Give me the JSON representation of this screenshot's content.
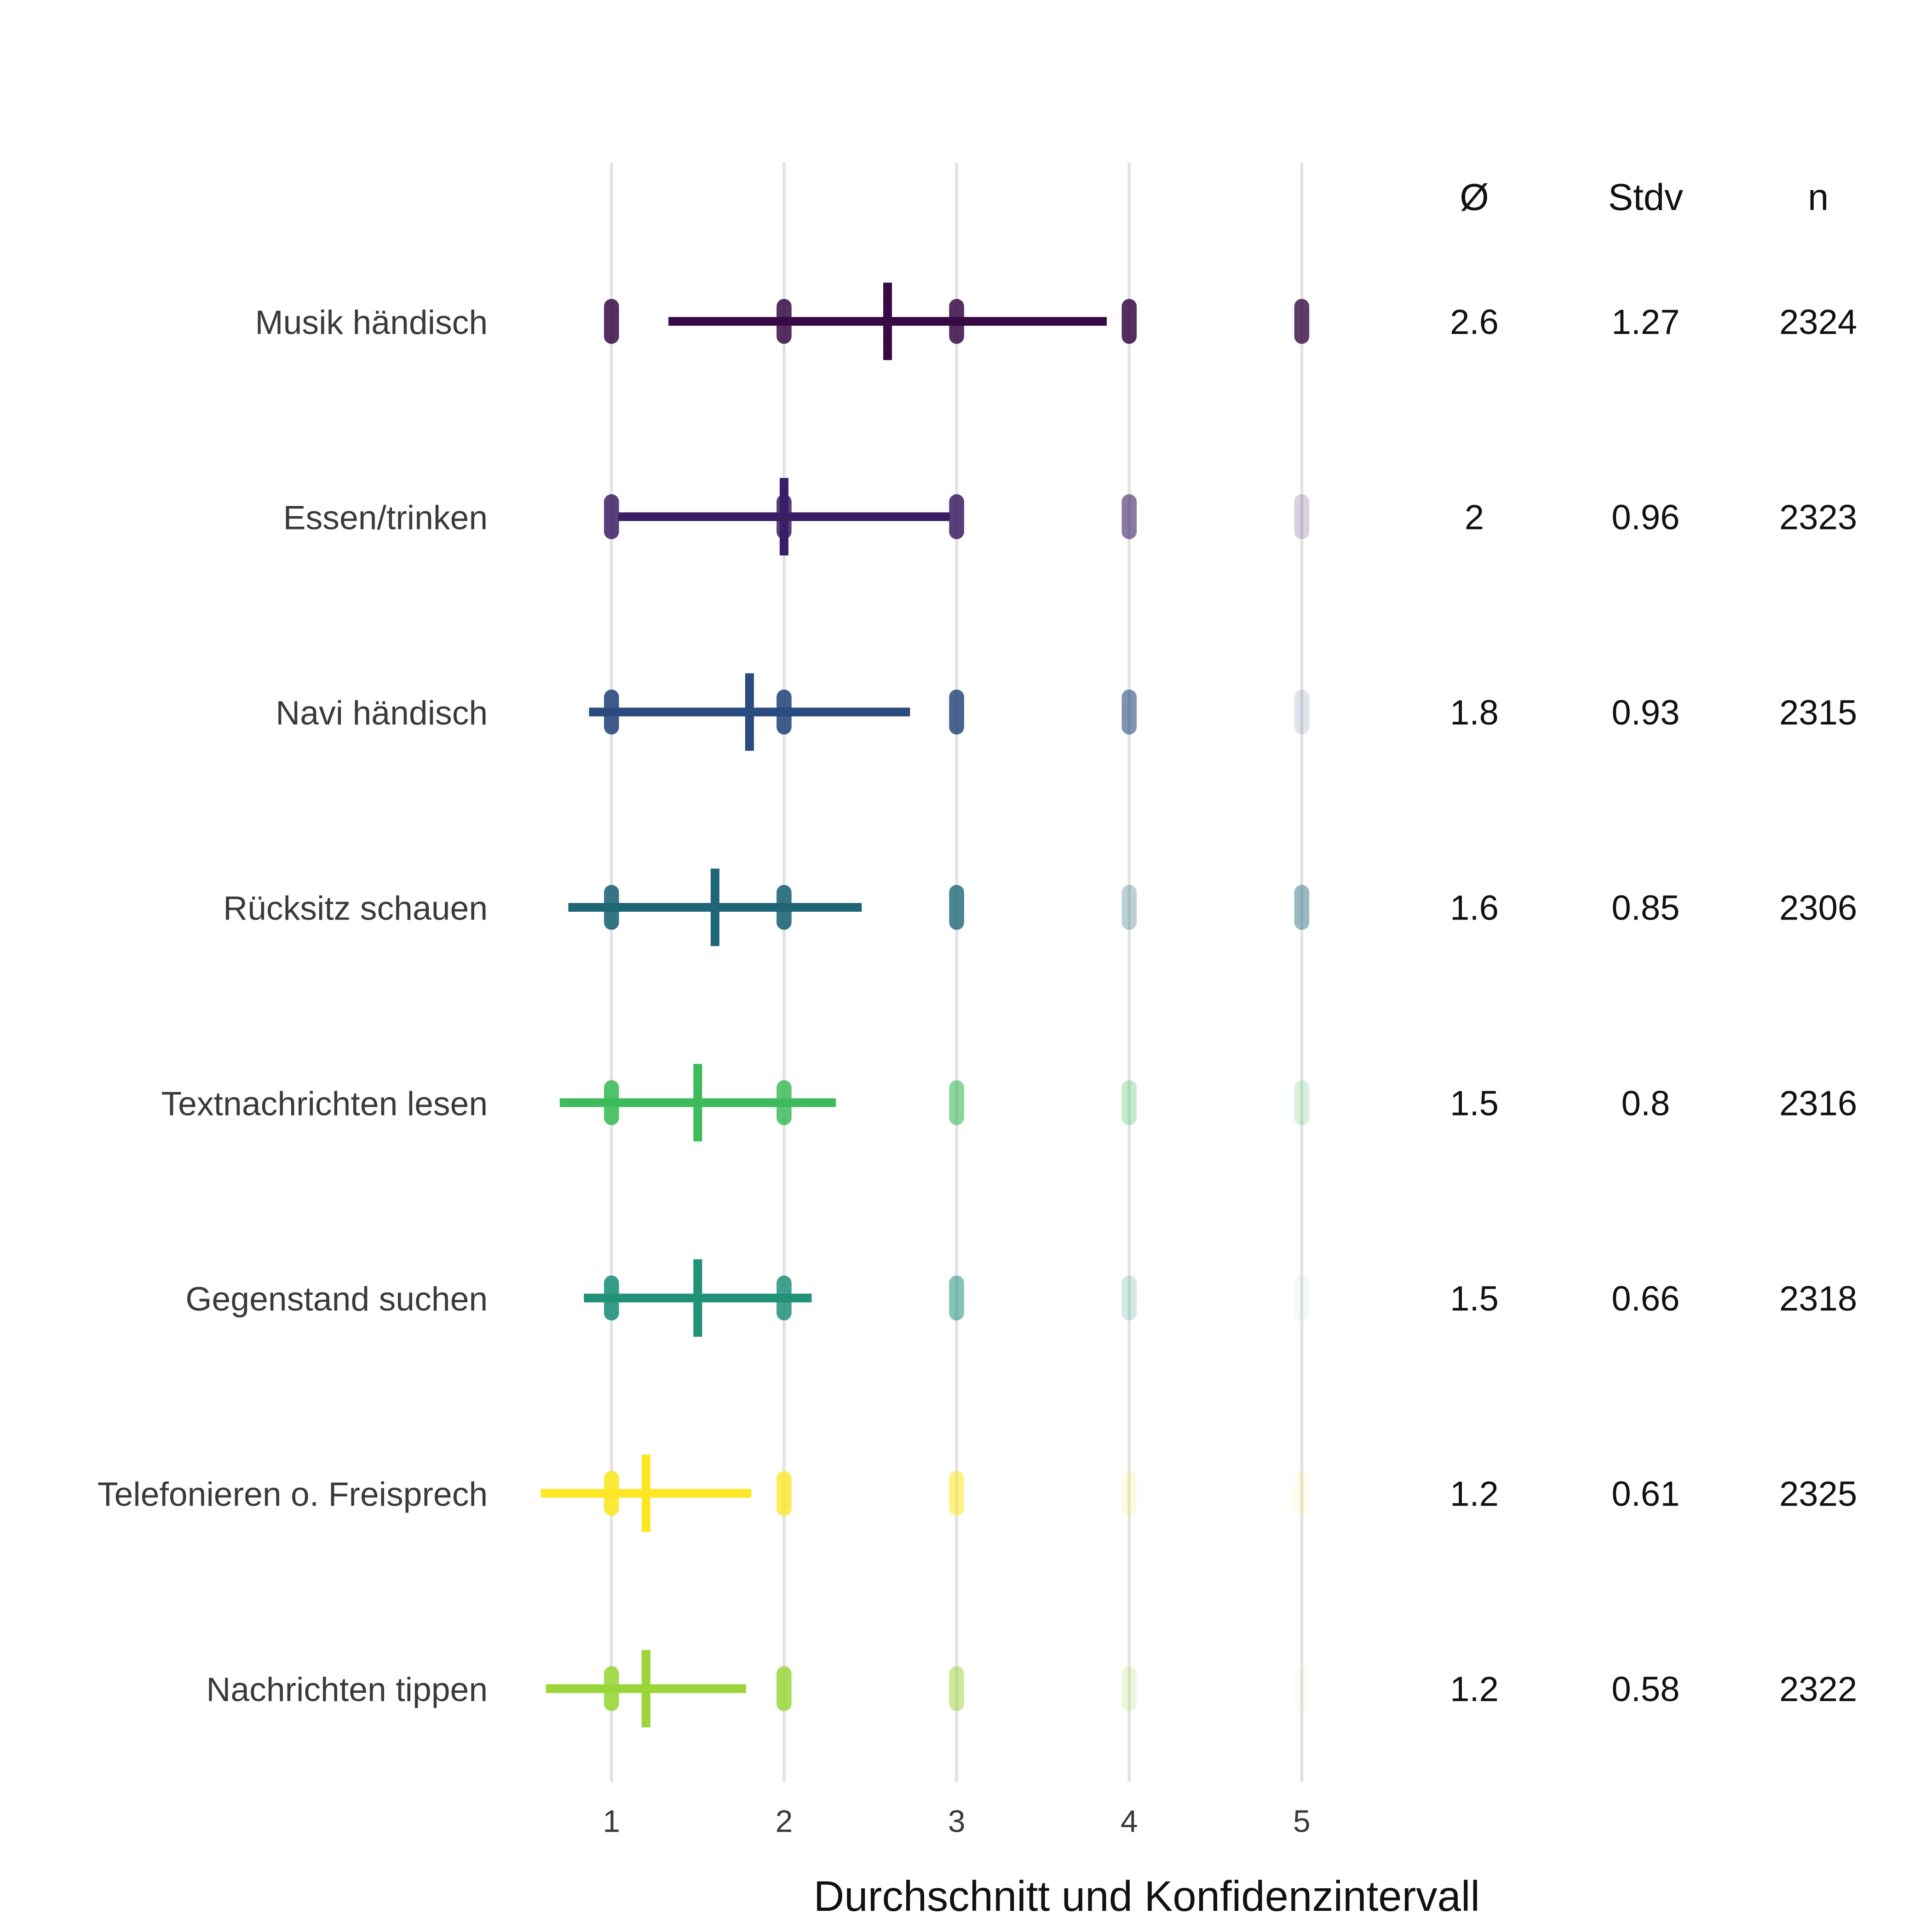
{
  "chart_data": {
    "type": "errorbar-jitter",
    "xlabel": "Durchschnitt und Konfidenzintervall",
    "xticks": [
      "1",
      "2",
      "3",
      "4",
      "5"
    ],
    "xlim": [
      0.6,
      5.4
    ],
    "grid": true,
    "table_headers": [
      "Ø",
      "Stdv",
      "n"
    ],
    "rows": [
      {
        "label": "Musik händisch",
        "mean": 2.6,
        "sd": 1.27,
        "n": 2324,
        "mean_text": "2.6",
        "sd_text": "1.27",
        "n_text": "2324",
        "color": "#370a45",
        "level_density": [
          0.85,
          0.85,
          0.85,
          0.85,
          0.8
        ]
      },
      {
        "label": "Essen/trinken",
        "mean": 2,
        "sd": 0.96,
        "n": 2323,
        "mean_text": "2",
        "sd_text": "0.96",
        "n_text": "2323",
        "color": "#3b1f66",
        "level_density": [
          0.85,
          0.85,
          0.85,
          0.6,
          0.2
        ]
      },
      {
        "label": "Navi händisch",
        "mean": 1.8,
        "sd": 0.93,
        "n": 2315,
        "mean_text": "1.8",
        "sd_text": "0.93",
        "n_text": "2315",
        "color": "#2b4a7e",
        "level_density": [
          0.9,
          0.9,
          0.85,
          0.6,
          0.15
        ]
      },
      {
        "label": "Rücksitz schauen",
        "mean": 1.6,
        "sd": 0.85,
        "n": 2306,
        "mean_text": "1.6",
        "sd_text": "0.85",
        "n_text": "2306",
        "color": "#1f6677",
        "level_density": [
          0.9,
          0.9,
          0.8,
          0.3,
          0.45
        ]
      },
      {
        "label": "Textnachrichten lesen",
        "mean": 1.5,
        "sd": 0.8,
        "n": 2316,
        "mean_text": "1.5",
        "sd_text": "0.8",
        "n_text": "2316",
        "color": "#3dbb5a",
        "level_density": [
          0.9,
          0.85,
          0.6,
          0.3,
          0.2
        ]
      },
      {
        "label": "Gegenstand suchen",
        "mean": 1.5,
        "sd": 0.66,
        "n": 2318,
        "mean_text": "1.5",
        "sd_text": "0.66",
        "n_text": "2318",
        "color": "#21917a",
        "level_density": [
          0.9,
          0.85,
          0.55,
          0.2,
          0.06
        ]
      },
      {
        "label": "Telefonieren o. Freisprech",
        "mean": 1.2,
        "sd": 0.61,
        "n": 2325,
        "mean_text": "1.2",
        "sd_text": "0.61",
        "n_text": "2325",
        "color": "#fde725",
        "level_density": [
          0.9,
          0.8,
          0.55,
          0.15,
          0.1
        ]
      },
      {
        "label": "Nachrichten tippen",
        "mean": 1.2,
        "sd": 0.58,
        "n": 2322,
        "mean_text": "1.2",
        "sd_text": "0.58",
        "n_text": "2322",
        "color": "#9ad63a",
        "level_density": [
          0.9,
          0.85,
          0.5,
          0.2,
          0.06
        ]
      }
    ]
  }
}
